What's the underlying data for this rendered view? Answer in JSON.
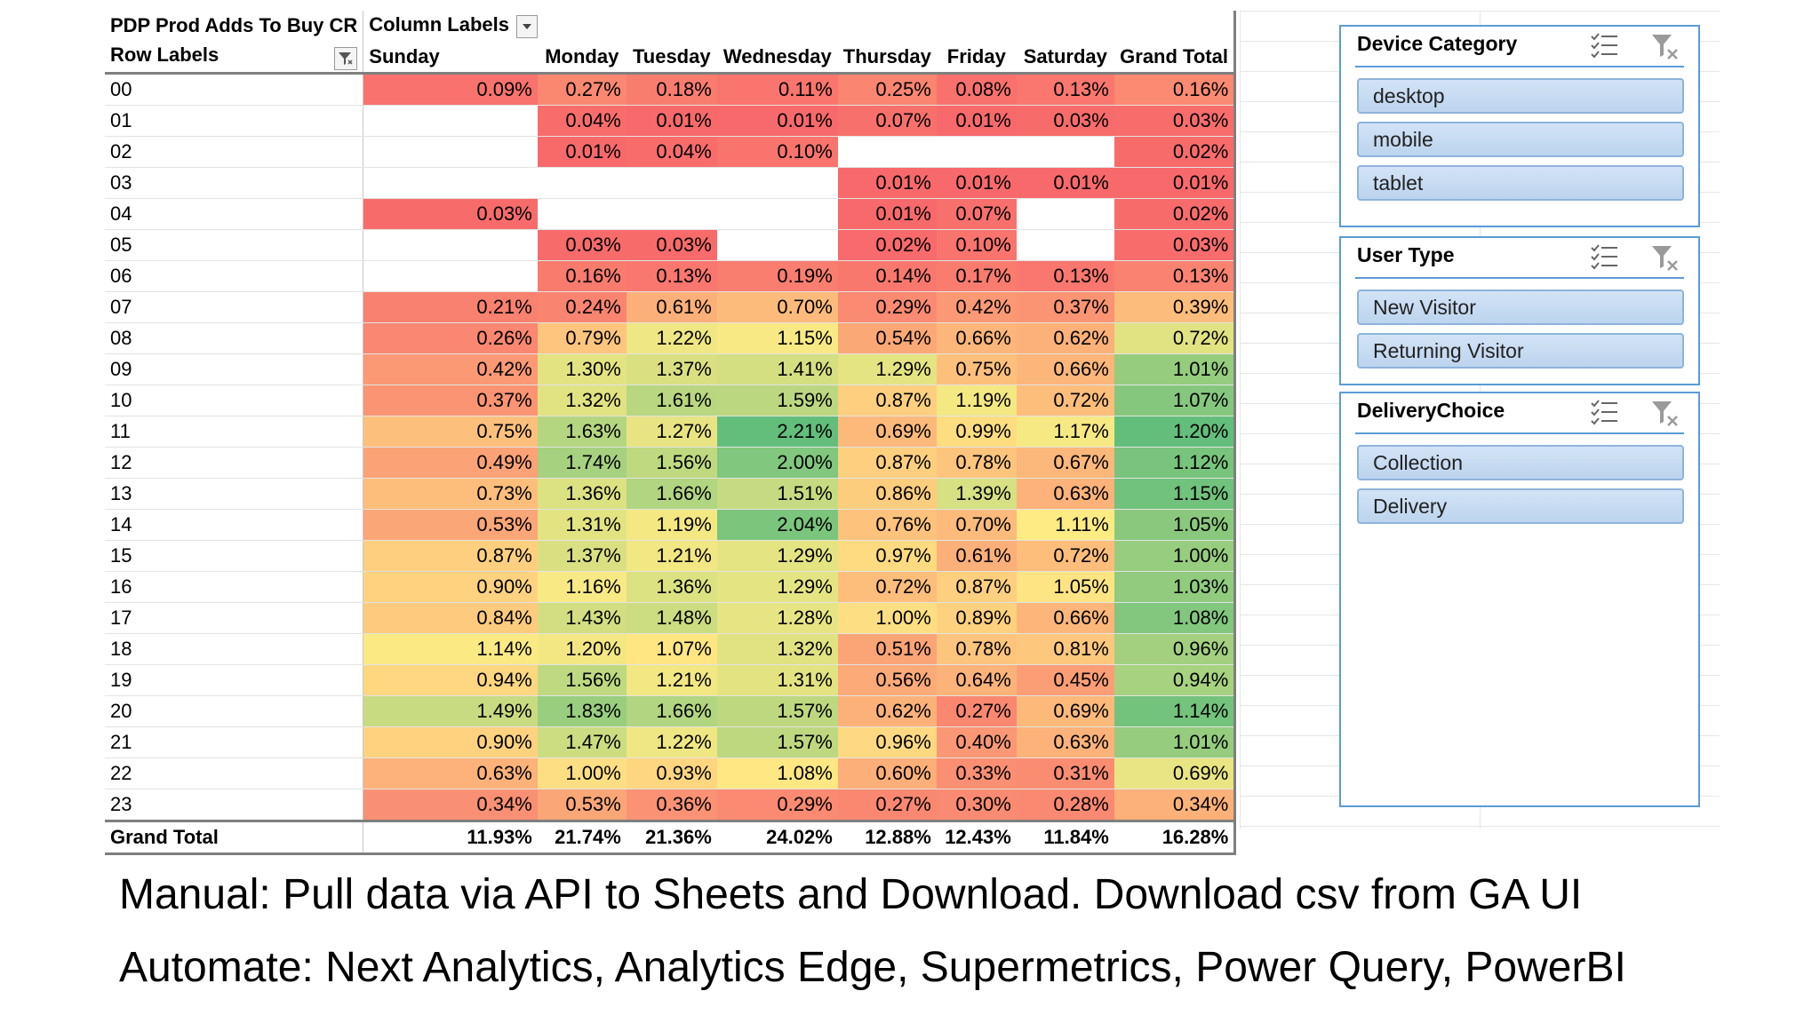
{
  "pivot": {
    "corner_title": "PDP Prod Adds To Buy CR",
    "column_labels": "Column Labels",
    "row_labels": "Row Labels",
    "columns": [
      "Sunday",
      "Monday",
      "Tuesday",
      "Wednesday",
      "Thursday",
      "Friday",
      "Saturday",
      "Grand Total"
    ],
    "rows": [
      {
        "label": "00",
        "values": [
          "0.09%",
          "0.27%",
          "0.18%",
          "0.11%",
          "0.25%",
          "0.08%",
          "0.13%",
          "0.16%"
        ]
      },
      {
        "label": "01",
        "values": [
          "",
          "0.04%",
          "0.01%",
          "0.01%",
          "0.07%",
          "0.01%",
          "0.03%",
          "0.03%"
        ]
      },
      {
        "label": "02",
        "values": [
          "",
          "0.01%",
          "0.04%",
          "0.10%",
          "",
          "",
          "",
          "0.02%"
        ]
      },
      {
        "label": "03",
        "values": [
          "",
          "",
          "",
          "",
          "0.01%",
          "0.01%",
          "0.01%",
          "0.01%"
        ]
      },
      {
        "label": "04",
        "values": [
          "0.03%",
          "",
          "",
          "",
          "0.01%",
          "0.07%",
          "",
          "0.02%"
        ]
      },
      {
        "label": "05",
        "values": [
          "",
          "0.03%",
          "0.03%",
          "",
          "0.02%",
          "0.10%",
          "",
          "0.03%"
        ]
      },
      {
        "label": "06",
        "values": [
          "",
          "0.16%",
          "0.13%",
          "0.19%",
          "0.14%",
          "0.17%",
          "0.13%",
          "0.13%"
        ]
      },
      {
        "label": "07",
        "values": [
          "0.21%",
          "0.24%",
          "0.61%",
          "0.70%",
          "0.29%",
          "0.42%",
          "0.37%",
          "0.39%"
        ]
      },
      {
        "label": "08",
        "values": [
          "0.26%",
          "0.79%",
          "1.22%",
          "1.15%",
          "0.54%",
          "0.66%",
          "0.62%",
          "0.72%"
        ]
      },
      {
        "label": "09",
        "values": [
          "0.42%",
          "1.30%",
          "1.37%",
          "1.41%",
          "1.29%",
          "0.75%",
          "0.66%",
          "1.01%"
        ]
      },
      {
        "label": "10",
        "values": [
          "0.37%",
          "1.32%",
          "1.61%",
          "1.59%",
          "0.87%",
          "1.19%",
          "0.72%",
          "1.07%"
        ]
      },
      {
        "label": "11",
        "values": [
          "0.75%",
          "1.63%",
          "1.27%",
          "2.21%",
          "0.69%",
          "0.99%",
          "1.17%",
          "1.20%"
        ]
      },
      {
        "label": "12",
        "values": [
          "0.49%",
          "1.74%",
          "1.56%",
          "2.00%",
          "0.87%",
          "0.78%",
          "0.67%",
          "1.12%"
        ]
      },
      {
        "label": "13",
        "values": [
          "0.73%",
          "1.36%",
          "1.66%",
          "1.51%",
          "0.86%",
          "1.39%",
          "0.63%",
          "1.15%"
        ]
      },
      {
        "label": "14",
        "values": [
          "0.53%",
          "1.31%",
          "1.19%",
          "2.04%",
          "0.76%",
          "0.70%",
          "1.11%",
          "1.05%"
        ]
      },
      {
        "label": "15",
        "values": [
          "0.87%",
          "1.37%",
          "1.21%",
          "1.29%",
          "0.97%",
          "0.61%",
          "0.72%",
          "1.00%"
        ]
      },
      {
        "label": "16",
        "values": [
          "0.90%",
          "1.16%",
          "1.36%",
          "1.29%",
          "0.72%",
          "0.87%",
          "1.05%",
          "1.03%"
        ]
      },
      {
        "label": "17",
        "values": [
          "0.84%",
          "1.43%",
          "1.48%",
          "1.28%",
          "1.00%",
          "0.89%",
          "0.66%",
          "1.08%"
        ]
      },
      {
        "label": "18",
        "values": [
          "1.14%",
          "1.20%",
          "1.07%",
          "1.32%",
          "0.51%",
          "0.78%",
          "0.81%",
          "0.96%"
        ]
      },
      {
        "label": "19",
        "values": [
          "0.94%",
          "1.56%",
          "1.21%",
          "1.31%",
          "0.56%",
          "0.64%",
          "0.45%",
          "0.94%"
        ]
      },
      {
        "label": "20",
        "values": [
          "1.49%",
          "1.83%",
          "1.66%",
          "1.57%",
          "0.62%",
          "0.27%",
          "0.69%",
          "1.14%"
        ]
      },
      {
        "label": "21",
        "values": [
          "0.90%",
          "1.47%",
          "1.22%",
          "1.57%",
          "0.96%",
          "0.40%",
          "0.63%",
          "1.01%"
        ]
      },
      {
        "label": "22",
        "values": [
          "0.63%",
          "1.00%",
          "0.93%",
          "1.08%",
          "0.60%",
          "0.33%",
          "0.31%",
          "0.69%"
        ]
      },
      {
        "label": "23",
        "values": [
          "0.34%",
          "0.53%",
          "0.36%",
          "0.29%",
          "0.27%",
          "0.30%",
          "0.28%",
          "0.34%"
        ]
      }
    ],
    "grand_total": {
      "label": "Grand Total",
      "values": [
        "11.93%",
        "21.74%",
        "21.36%",
        "24.02%",
        "12.88%",
        "12.43%",
        "11.84%",
        "16.28%"
      ]
    },
    "heatmap_colors": {
      "low": "#f8696b",
      "mid": "#ffeb84",
      "high": "#63be7b"
    }
  },
  "slicers": [
    {
      "title": "Device Category",
      "items": [
        "desktop",
        "mobile",
        "tablet"
      ]
    },
    {
      "title": "User Type",
      "items": [
        "New Visitor",
        "Returning Visitor"
      ]
    },
    {
      "title": "DeliveryChoice",
      "items": [
        "Collection",
        "Delivery"
      ]
    }
  ],
  "captions": {
    "manual": "Manual: Pull data via API to Sheets and Download. Download csv from GA UI",
    "automate": "Automate: Next Analytics, Analytics Edge, Supermetrics, Power Query, PowerBI"
  }
}
